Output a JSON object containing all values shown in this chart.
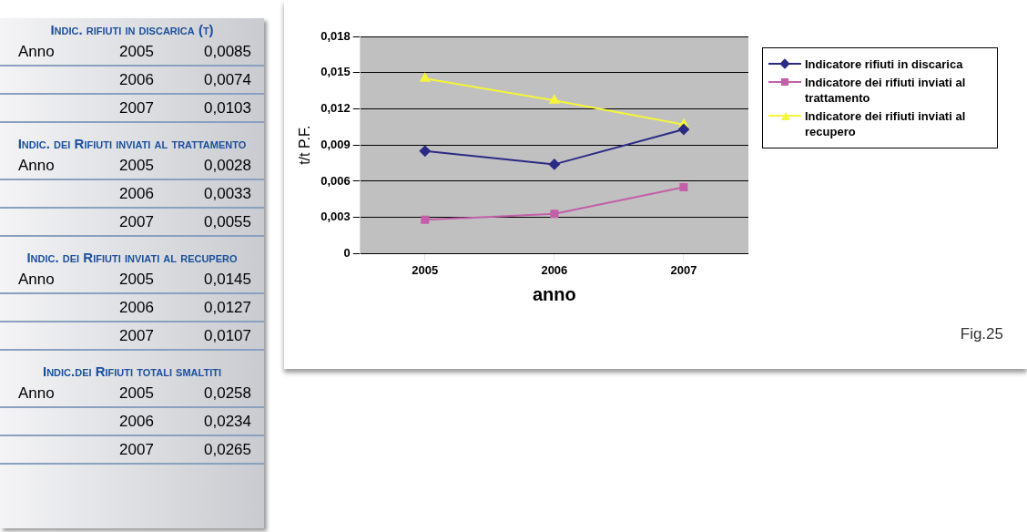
{
  "chart_data": [
    {
      "type": "other",
      "annotations": [
        "Indic. rifiuti in discarica (t)",
        "Anno",
        "2005",
        "0,0085",
        "2006",
        "0,0074",
        "2007",
        "0,0103",
        "Indic. dei Rifiuti inviati al trattamento",
        "Anno",
        "2005",
        "0,0028",
        "2006",
        "0,0033",
        "2007",
        "0,0055",
        "Indic. dei Rifiuti inviati al recupero",
        "Anno",
        "2005",
        "0,0145",
        "2006",
        "0,0127",
        "2007",
        "0,0107",
        "Indic.dei Rifiuti totali smaltiti",
        "Anno",
        "2005",
        "0,0258",
        "2006",
        "0,0234",
        "2007",
        "0,0265"
      ]
    },
    {
      "type": "line",
      "categories": [
        "2005",
        "2006",
        "2007"
      ],
      "series": [
        {
          "name": "Indicatore rifiuti in discarica",
          "color": "#2b2b86",
          "marker": "diamond",
          "values": [
            0.0085,
            0.0074,
            0.0103
          ]
        },
        {
          "name": "Indicatore dei rifiuti inviati al trattamento",
          "color": "#c35fa8",
          "marker": "square",
          "values": [
            0.0028,
            0.0033,
            0.0055
          ]
        },
        {
          "name": "Indicatore dei rifiuti inviati al recupero",
          "color": "#f5f53a",
          "marker": "triangle",
          "values": [
            0.0145,
            0.0127,
            0.0107
          ]
        }
      ],
      "ylim": [
        0,
        0.018
      ],
      "yticks": [
        {
          "value": 0,
          "label": "0"
        },
        {
          "value": 0.003,
          "label": "0,003"
        },
        {
          "value": 0.006,
          "label": "0,006"
        },
        {
          "value": 0.009,
          "label": "0,009"
        },
        {
          "value": 0.012,
          "label": "0,012"
        },
        {
          "value": 0.015,
          "label": "0,015"
        },
        {
          "value": 0.018,
          "label": "0,018"
        }
      ],
      "xlabel": "anno",
      "ylabel": "t/t P.F.",
      "grid": "y",
      "legend": "right",
      "annotations": [
        "Fig.25"
      ]
    }
  ]
}
